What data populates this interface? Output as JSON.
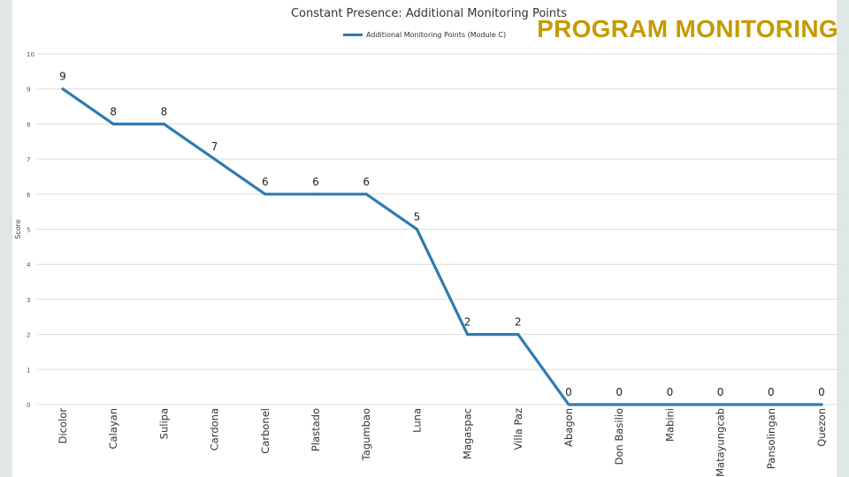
{
  "page": {
    "program_title": "PROGRAM MONITORING",
    "program_title_color": "#c59a00",
    "frame_color": "#dfe8e5"
  },
  "chart_data": {
    "type": "line",
    "title": "Constant Presence: Additional Monitoring Points",
    "ylabel": "Score",
    "xlabel": "",
    "ylim": [
      0,
      10
    ],
    "yticks": [
      0,
      1,
      2,
      3,
      4,
      5,
      6,
      7,
      8,
      9,
      10
    ],
    "grid": true,
    "legend_position": "top-center",
    "categories": [
      "Dicolor",
      "Calayan",
      "Sulipa",
      "Cardona",
      "Carbonel",
      "Plastado",
      "Tagumbao",
      "Luna",
      "Magaspac",
      "Villa Paz",
      "Abagon",
      "Don Basilio",
      "Mabini",
      "Matayungcab",
      "Pansolingan",
      "Quezon"
    ],
    "series": [
      {
        "name": "Additional Monitoring Points (Module C)",
        "color": "#2e7bb4",
        "values": [
          9,
          8,
          8,
          7,
          6,
          6,
          6,
          5,
          2,
          2,
          0,
          0,
          0,
          0,
          0,
          0
        ]
      }
    ]
  }
}
